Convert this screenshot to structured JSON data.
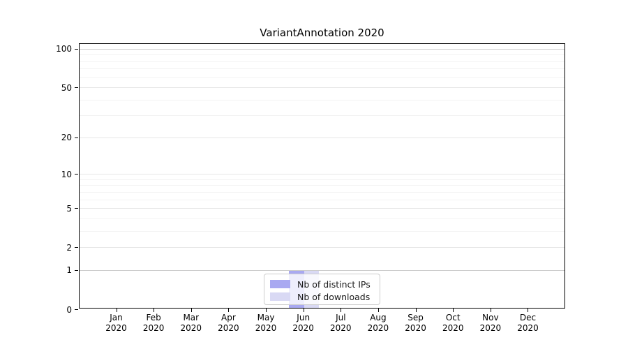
{
  "chart_data": {
    "type": "bar",
    "title": "VariantAnnotation 2020",
    "categories": [
      "Jan",
      "Feb",
      "Mar",
      "Apr",
      "May",
      "Jun",
      "Jul",
      "Aug",
      "Sep",
      "Oct",
      "Nov",
      "Dec"
    ],
    "x_year_label": "2020",
    "series": [
      {
        "name": "Nb of distinct IPs",
        "color": "#a9a9f1",
        "values": [
          0,
          0,
          0,
          0,
          0,
          1,
          0,
          0,
          0,
          0,
          0,
          0
        ]
      },
      {
        "name": "Nb of downloads",
        "color": "#d9d9f4",
        "values": [
          0,
          0,
          0,
          0,
          0,
          1,
          0,
          0,
          0,
          0,
          0,
          0
        ]
      }
    ],
    "y_axis": {
      "scale": "log10(value+1)",
      "tick_labels": [
        "100",
        "50",
        "20",
        "10",
        "5",
        "2",
        "1",
        "0"
      ],
      "tick_values": [
        100,
        50,
        20,
        10,
        5,
        2,
        1,
        0
      ],
      "minor_tick_values": [
        90,
        80,
        70,
        60,
        40,
        30,
        9,
        8,
        7,
        6,
        4,
        3
      ],
      "range": [
        0,
        100
      ],
      "grid": "on"
    },
    "legend": {
      "position": "bottom-center",
      "entries": [
        "Nb of distinct IPs",
        "Nb of downloads"
      ]
    }
  }
}
